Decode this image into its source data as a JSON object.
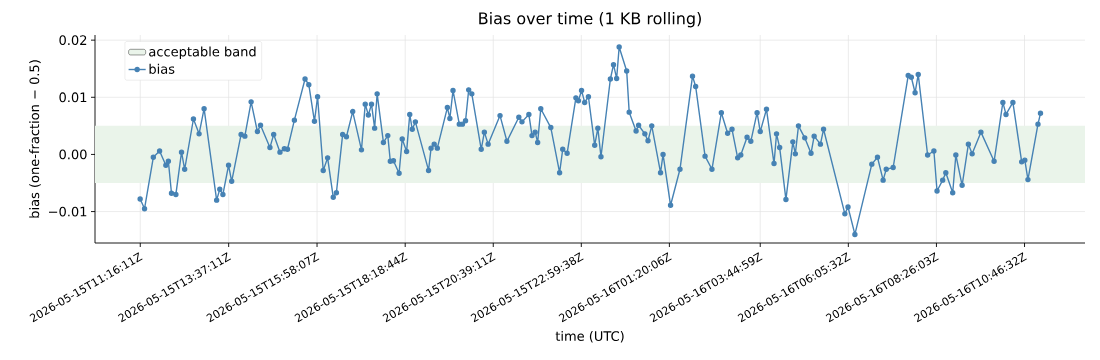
{
  "chart_data": {
    "type": "line",
    "title": "Bias over time (1 KB rolling)",
    "xlabel": "time (UTC)",
    "ylabel": "bias (one-fraction − 0.5)",
    "x": [
      "2026-05-15T11:16",
      "2026-05-15T11:23",
      "2026-05-15T11:37",
      "2026-05-15T11:47",
      "2026-05-15T11:57",
      "2026-05-15T12:01",
      "2026-05-15T12:06",
      "2026-05-15T12:13",
      "2026-05-15T12:22",
      "2026-05-15T12:27",
      "2026-05-15T12:41",
      "2026-05-15T12:50",
      "2026-05-15T12:58",
      "2026-05-15T13:18",
      "2026-05-15T13:23",
      "2026-05-15T13:28",
      "2026-05-15T13:37",
      "2026-05-15T13:42",
      "2026-05-15T13:57",
      "2026-05-15T14:03",
      "2026-05-15T14:13",
      "2026-05-15T14:23",
      "2026-05-15T14:28",
      "2026-05-15T14:43",
      "2026-05-15T14:49",
      "2026-05-15T14:59",
      "2026-05-15T15:06",
      "2026-05-15T15:11",
      "2026-05-15T15:22",
      "2026-05-15T15:39",
      "2026-05-15T15:45",
      "2026-05-15T15:54",
      "2026-05-15T15:59",
      "2026-05-15T16:08",
      "2026-05-15T16:15",
      "2026-05-15T16:24",
      "2026-05-15T16:29",
      "2026-05-15T16:39",
      "2026-05-15T16:45",
      "2026-05-15T16:55",
      "2026-05-15T17:09",
      "2026-05-15T17:15",
      "2026-05-15T17:20",
      "2026-05-15T17:25",
      "2026-05-15T17:30",
      "2026-05-15T17:34",
      "2026-05-15T17:44",
      "2026-05-15T17:51",
      "2026-05-15T17:55",
      "2026-05-15T18:00",
      "2026-05-15T18:09",
      "2026-05-15T18:14",
      "2026-05-15T18:21",
      "2026-05-15T18:26",
      "2026-05-15T18:30",
      "2026-05-15T18:35",
      "2026-05-15T18:56",
      "2026-05-15T19:00",
      "2026-05-15T19:05",
      "2026-05-15T19:10",
      "2026-05-15T19:26",
      "2026-05-15T19:30",
      "2026-05-15T19:35",
      "2026-05-15T19:45",
      "2026-05-15T19:50",
      "2026-05-15T19:55",
      "2026-05-15T20:00",
      "2026-05-15T20:05",
      "2026-05-15T20:20",
      "2026-05-15T20:25",
      "2026-05-15T20:31",
      "2026-05-15T20:50",
      "2026-05-15T21:01",
      "2026-05-15T21:20",
      "2026-05-15T21:25",
      "2026-05-15T21:36",
      "2026-05-15T21:41",
      "2026-05-15T21:46",
      "2026-05-15T21:50",
      "2026-05-15T21:55",
      "2026-05-15T22:11",
      "2026-05-15T22:25",
      "2026-05-15T22:30",
      "2026-05-15T22:37",
      "2026-05-15T22:51",
      "2026-05-15T22:55",
      "2026-05-15T23:00",
      "2026-05-15T23:05",
      "2026-05-15T23:11",
      "2026-05-15T23:21",
      "2026-05-15T23:26",
      "2026-05-15T23:31",
      "2026-05-15T23:46",
      "2026-05-15T23:51",
      "2026-05-15T23:56",
      "2026-05-16T00:00",
      "2026-05-16T00:12",
      "2026-05-16T00:16",
      "2026-05-16T00:27",
      "2026-05-16T00:31",
      "2026-05-16T00:41",
      "2026-05-16T00:46",
      "2026-05-16T00:52",
      "2026-05-16T01:06",
      "2026-05-16T01:10",
      "2026-05-16T01:22",
      "2026-05-16T01:37",
      "2026-05-16T01:57",
      "2026-05-16T02:02",
      "2026-05-16T02:17",
      "2026-05-16T02:28",
      "2026-05-16T02:43",
      "2026-05-16T02:53",
      "2026-05-16T03:00",
      "2026-05-16T03:09",
      "2026-05-16T03:14",
      "2026-05-16T03:24",
      "2026-05-16T03:30",
      "2026-05-16T03:40",
      "2026-05-16T03:45",
      "2026-05-16T03:55",
      "2026-05-16T04:07",
      "2026-05-16T04:11",
      "2026-05-16T04:16",
      "2026-05-16T04:26",
      "2026-05-16T04:37",
      "2026-05-16T04:41",
      "2026-05-16T04:46",
      "2026-05-16T04:56",
      "2026-05-16T05:06",
      "2026-05-16T05:11",
      "2026-05-16T05:21",
      "2026-05-16T05:26",
      "2026-05-16T06:00",
      "2026-05-16T06:05",
      "2026-05-16T06:16",
      "2026-05-16T06:43",
      "2026-05-16T06:52",
      "2026-05-16T07:01",
      "2026-05-16T07:06",
      "2026-05-16T07:17",
      "2026-05-16T07:41",
      "2026-05-16T07:46",
      "2026-05-16T07:52",
      "2026-05-16T07:57",
      "2026-05-16T08:12",
      "2026-05-16T08:22",
      "2026-05-16T08:27",
      "2026-05-16T08:36",
      "2026-05-16T08:41",
      "2026-05-16T08:52",
      "2026-05-16T08:57",
      "2026-05-16T09:07",
      "2026-05-16T09:17",
      "2026-05-16T09:23",
      "2026-05-16T09:37",
      "2026-05-16T09:58",
      "2026-05-16T10:12",
      "2026-05-16T10:17",
      "2026-05-16T10:28",
      "2026-05-16T10:42",
      "2026-05-16T10:47",
      "2026-05-16T10:52",
      "2026-05-16T11:08",
      "2026-05-16T11:12"
    ],
    "series": [
      {
        "name": "bias",
        "color": "#4682b4",
        "values": [
          -0.0078,
          -0.0095,
          -0.0005,
          0.0006,
          -0.0019,
          -0.0012,
          -0.0068,
          -0.007,
          0.0004,
          -0.0026,
          0.0062,
          0.0036,
          0.008,
          -0.008,
          -0.0061,
          -0.007,
          -0.0019,
          -0.0047,
          0.0035,
          0.0032,
          0.0092,
          0.004,
          0.0051,
          0.0012,
          0.0035,
          0.0004,
          0.001,
          0.0009,
          0.006,
          0.0132,
          0.0122,
          0.0058,
          0.0101,
          -0.0028,
          -0.0006,
          -0.0075,
          -0.0067,
          0.0035,
          0.0031,
          0.0075,
          0.0008,
          0.0088,
          0.0069,
          0.0088,
          0.0046,
          0.0106,
          0.0021,
          0.0033,
          -0.0012,
          -0.0011,
          -0.0033,
          0.0027,
          0.0005,
          0.007,
          0.0044,
          0.0057,
          -0.0028,
          0.0011,
          0.0018,
          0.0011,
          0.0082,
          0.0063,
          0.0112,
          0.0053,
          0.0053,
          0.0059,
          0.0113,
          0.0106,
          0.0009,
          0.0039,
          0.0018,
          0.0068,
          0.0023,
          0.0065,
          0.0057,
          0.007,
          0.0033,
          0.0039,
          0.0021,
          0.008,
          0.0047,
          -0.0032,
          0.0009,
          0.0002,
          0.0099,
          0.0094,
          0.0112,
          0.0091,
          0.0101,
          0.0016,
          0.0046,
          -0.0004,
          0.0132,
          0.0157,
          0.0133,
          0.0188,
          0.0146,
          0.0074,
          0.0041,
          0.0051,
          0.0036,
          0.0024,
          0.005,
          -0.0032,
          0.0,
          -0.0089,
          -0.0026,
          0.0137,
          0.0119,
          -0.0003,
          -0.0026,
          0.0073,
          0.0037,
          0.0044,
          -0.0006,
          -0.0001,
          0.003,
          0.0023,
          0.0073,
          0.004,
          0.0079,
          -0.0016,
          0.0036,
          0.0012,
          -0.0079,
          0.0022,
          0.0001,
          0.005,
          0.0029,
          0.0002,
          0.0032,
          0.0018,
          0.0044,
          -0.0104,
          -0.0092,
          -0.014,
          -0.0017,
          -0.0005,
          -0.0045,
          -0.0026,
          -0.0023,
          0.0138,
          0.0135,
          0.0108,
          0.014,
          -0.0001,
          0.0006,
          -0.0064,
          -0.0045,
          -0.0032,
          -0.0067,
          -0.0001,
          -0.0054,
          0.0018,
          0.0001,
          0.0039,
          -0.0012,
          0.0091,
          0.007,
          0.0091,
          -0.0013,
          -0.001,
          -0.0044,
          0.0053,
          0.0072
        ]
      }
    ],
    "xlim": [
      "2026-05-15T10:04",
      "2026-05-16T12:23"
    ],
    "ylim": [
      -0.0155,
      0.0209
    ],
    "xticks": [
      {
        "value": "2026-05-15T11:16:11",
        "label": "2026-05-15T11:16:11Z"
      },
      {
        "value": "2026-05-15T13:37:11",
        "label": "2026-05-15T13:37:11Z"
      },
      {
        "value": "2026-05-15T15:58:07",
        "label": "2026-05-15T15:58:07Z"
      },
      {
        "value": "2026-05-15T18:18:44",
        "label": "2026-05-15T18:18:44Z"
      },
      {
        "value": "2026-05-15T20:39:11",
        "label": "2026-05-15T20:39:11Z"
      },
      {
        "value": "2026-05-15T22:59:38",
        "label": "2026-05-15T22:59:38Z"
      },
      {
        "value": "2026-05-16T01:20:06",
        "label": "2026-05-16T01:20:06Z"
      },
      {
        "value": "2026-05-16T03:44:59",
        "label": "2026-05-16T03:44:59Z"
      },
      {
        "value": "2026-05-16T06:05:32",
        "label": "2026-05-16T06:05:32Z"
      },
      {
        "value": "2026-05-16T08:26:03",
        "label": "2026-05-16T08:26:03Z"
      },
      {
        "value": "2026-05-16T10:46:32",
        "label": "2026-05-16T10:46:32Z"
      }
    ],
    "yticks": [
      {
        "value": -0.01,
        "label": "−0.01"
      },
      {
        "value": 0.0,
        "label": "0.00"
      },
      {
        "value": 0.01,
        "label": "0.01"
      },
      {
        "value": 0.02,
        "label": "0.02"
      }
    ],
    "bands": [
      {
        "axis": "y",
        "from": -0.005,
        "to": 0.005,
        "label": "acceptable band",
        "color": "#eaf4ea"
      }
    ],
    "grid": true,
    "legend": "top left",
    "marker": "circle"
  }
}
